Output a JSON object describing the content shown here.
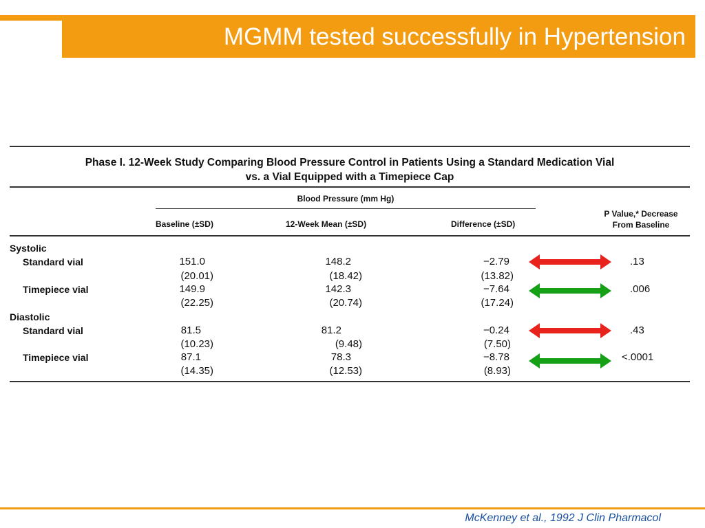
{
  "slide": {
    "title": "MGMM tested successfully in Hypertension",
    "citation": "McKenney et al., 1992 J Clin Pharmacol"
  },
  "table": {
    "caption_line1": "Phase I. 12-Week Study Comparing Blood Pressure Control in Patients Using a Standard Medication Vial",
    "caption_line2": "vs. a Vial Equipped with a Timepiece Cap",
    "group_header": "Blood Pressure (mm Hg)",
    "columns": {
      "baseline": "Baseline (±SD)",
      "week12": "12-Week Mean (±SD)",
      "difference": "Difference (±SD)",
      "p_value_line1": "P Value,* Decrease",
      "p_value_line2": "From Baseline"
    },
    "groups": [
      {
        "label": "Systolic",
        "rows": [
          {
            "label": "Standard vial",
            "baseline": "151.0",
            "baseline_sd": "(20.01)",
            "week12": "148.2",
            "week12_sd": "(18.42)",
            "diff": "−2.79",
            "diff_sd": "(13.82)",
            "p": ".13",
            "arrow_color": "#e8231e"
          },
          {
            "label": "Timepiece vial",
            "baseline": "149.9",
            "baseline_sd": "(22.25)",
            "week12": "142.3",
            "week12_sd": "(20.74)",
            "diff": "−7.64",
            "diff_sd": "(17.24)",
            "p": ".006",
            "arrow_color": "#16a016"
          }
        ]
      },
      {
        "label": "Diastolic",
        "rows": [
          {
            "label": "Standard vial",
            "baseline": "81.5",
            "baseline_sd": "(10.23)",
            "week12": "81.2",
            "week12_sd": "(9.48)",
            "diff": "−0.24",
            "diff_sd": "(7.50)",
            "p": ".43",
            "arrow_color": "#e8231e"
          },
          {
            "label": "Timepiece vial",
            "baseline": "87.1",
            "baseline_sd": "(14.35)",
            "week12": "78.3",
            "week12_sd": "(12.53)",
            "diff": "−8.78",
            "diff_sd": "(8.93)",
            "p": "<.0001",
            "arrow_color": "#16a016"
          }
        ]
      }
    ]
  },
  "colors": {
    "accent": "#f39c12",
    "worse_arrow": "#e8231e",
    "better_arrow": "#16a016",
    "citation": "#1a4fa0"
  }
}
